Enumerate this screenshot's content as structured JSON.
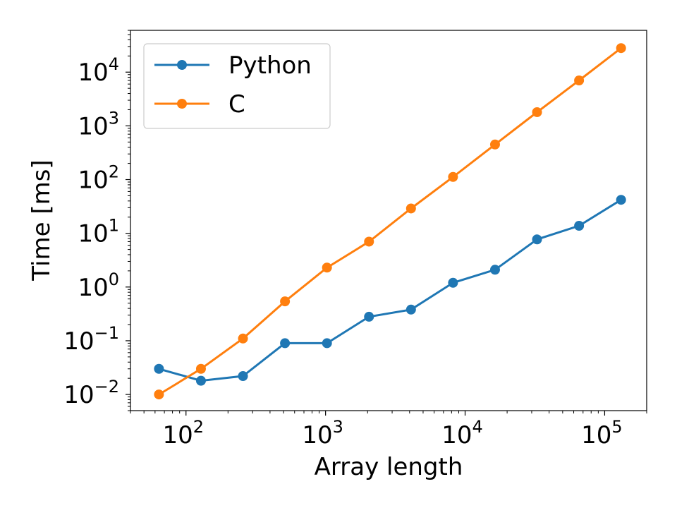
{
  "chart_data": {
    "type": "line",
    "xlabel": "Array length",
    "ylabel": "Time [ms]",
    "xscale": "log",
    "yscale": "log",
    "xlim": [
      40,
      200000
    ],
    "ylim": [
      0.005,
      60000
    ],
    "grid": false,
    "legend_position": "top-left",
    "x": [
      64,
      128,
      256,
      512,
      1024,
      2048,
      4096,
      8192,
      16384,
      32768,
      65536,
      131072
    ],
    "series": [
      {
        "name": "Python",
        "color": "#1f77b4",
        "values": [
          0.03,
          0.018,
          0.022,
          0.09,
          0.09,
          0.28,
          0.38,
          1.2,
          2.1,
          7.7,
          13.8,
          42
        ]
      },
      {
        "name": "C",
        "color": "#ff7f0e",
        "values": [
          0.01,
          0.03,
          0.11,
          0.54,
          2.3,
          7.0,
          29,
          112,
          450,
          1800,
          7000,
          28000
        ]
      }
    ],
    "x_ticks": [
      {
        "value": 100,
        "base": "10",
        "exp": "2"
      },
      {
        "value": 1000,
        "base": "10",
        "exp": "3"
      },
      {
        "value": 10000,
        "base": "10",
        "exp": "4"
      },
      {
        "value": 100000,
        "base": "10",
        "exp": "5"
      }
    ],
    "y_ticks": [
      {
        "value": 0.01,
        "base": "10",
        "exp": "−2"
      },
      {
        "value": 0.1,
        "base": "10",
        "exp": "−1"
      },
      {
        "value": 1,
        "base": "10",
        "exp": "0"
      },
      {
        "value": 10,
        "base": "10",
        "exp": "1"
      },
      {
        "value": 100,
        "base": "10",
        "exp": "2"
      },
      {
        "value": 1000,
        "base": "10",
        "exp": "3"
      },
      {
        "value": 10000,
        "base": "10",
        "exp": "4"
      }
    ]
  }
}
